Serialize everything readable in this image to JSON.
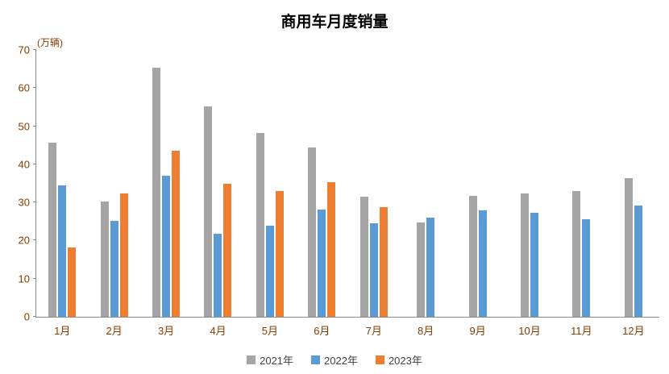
{
  "title": "商用车月度销量",
  "y_axis": {
    "unit": "(万辆)",
    "step": 10,
    "ticks": [
      "0",
      "10",
      "20",
      "30",
      "40",
      "50",
      "60",
      "70"
    ]
  },
  "colors": {
    "axis_text": "#833C00",
    "axis_line": "#898989",
    "title_text": "#000000",
    "legend_text": "#404040",
    "series_2021": "#A5A5A5",
    "series_2022": "#5B9BD5",
    "series_2023": "#ED7D31"
  },
  "chart_data": {
    "type": "bar",
    "title": "商用车月度销量",
    "xlabel": "",
    "ylabel": "(万辆)",
    "ylim": [
      0,
      70
    ],
    "grid": false,
    "legend_position": "bottom",
    "categories": [
      "1月",
      "2月",
      "3月",
      "4月",
      "5月",
      "6月",
      "7月",
      "8月",
      "9月",
      "10月",
      "11月",
      "12月"
    ],
    "series": [
      {
        "name": "2021年",
        "color": "#A5A5A5",
        "values": [
          45.7,
          30.2,
          65.3,
          55.1,
          48.2,
          44.5,
          31.5,
          24.8,
          31.8,
          32.4,
          33.0,
          36.4
        ]
      },
      {
        "name": "2022年",
        "color": "#5B9BD5",
        "values": [
          34.4,
          25.1,
          37.1,
          21.7,
          24.0,
          28.1,
          24.5,
          26.0,
          27.9,
          27.3,
          25.6,
          29.2
        ]
      },
      {
        "name": "2023年",
        "color": "#ED7D31",
        "values": [
          18.1,
          32.4,
          43.6,
          34.9,
          33.0,
          35.4,
          28.8,
          null,
          null,
          null,
          null,
          null
        ]
      }
    ]
  }
}
